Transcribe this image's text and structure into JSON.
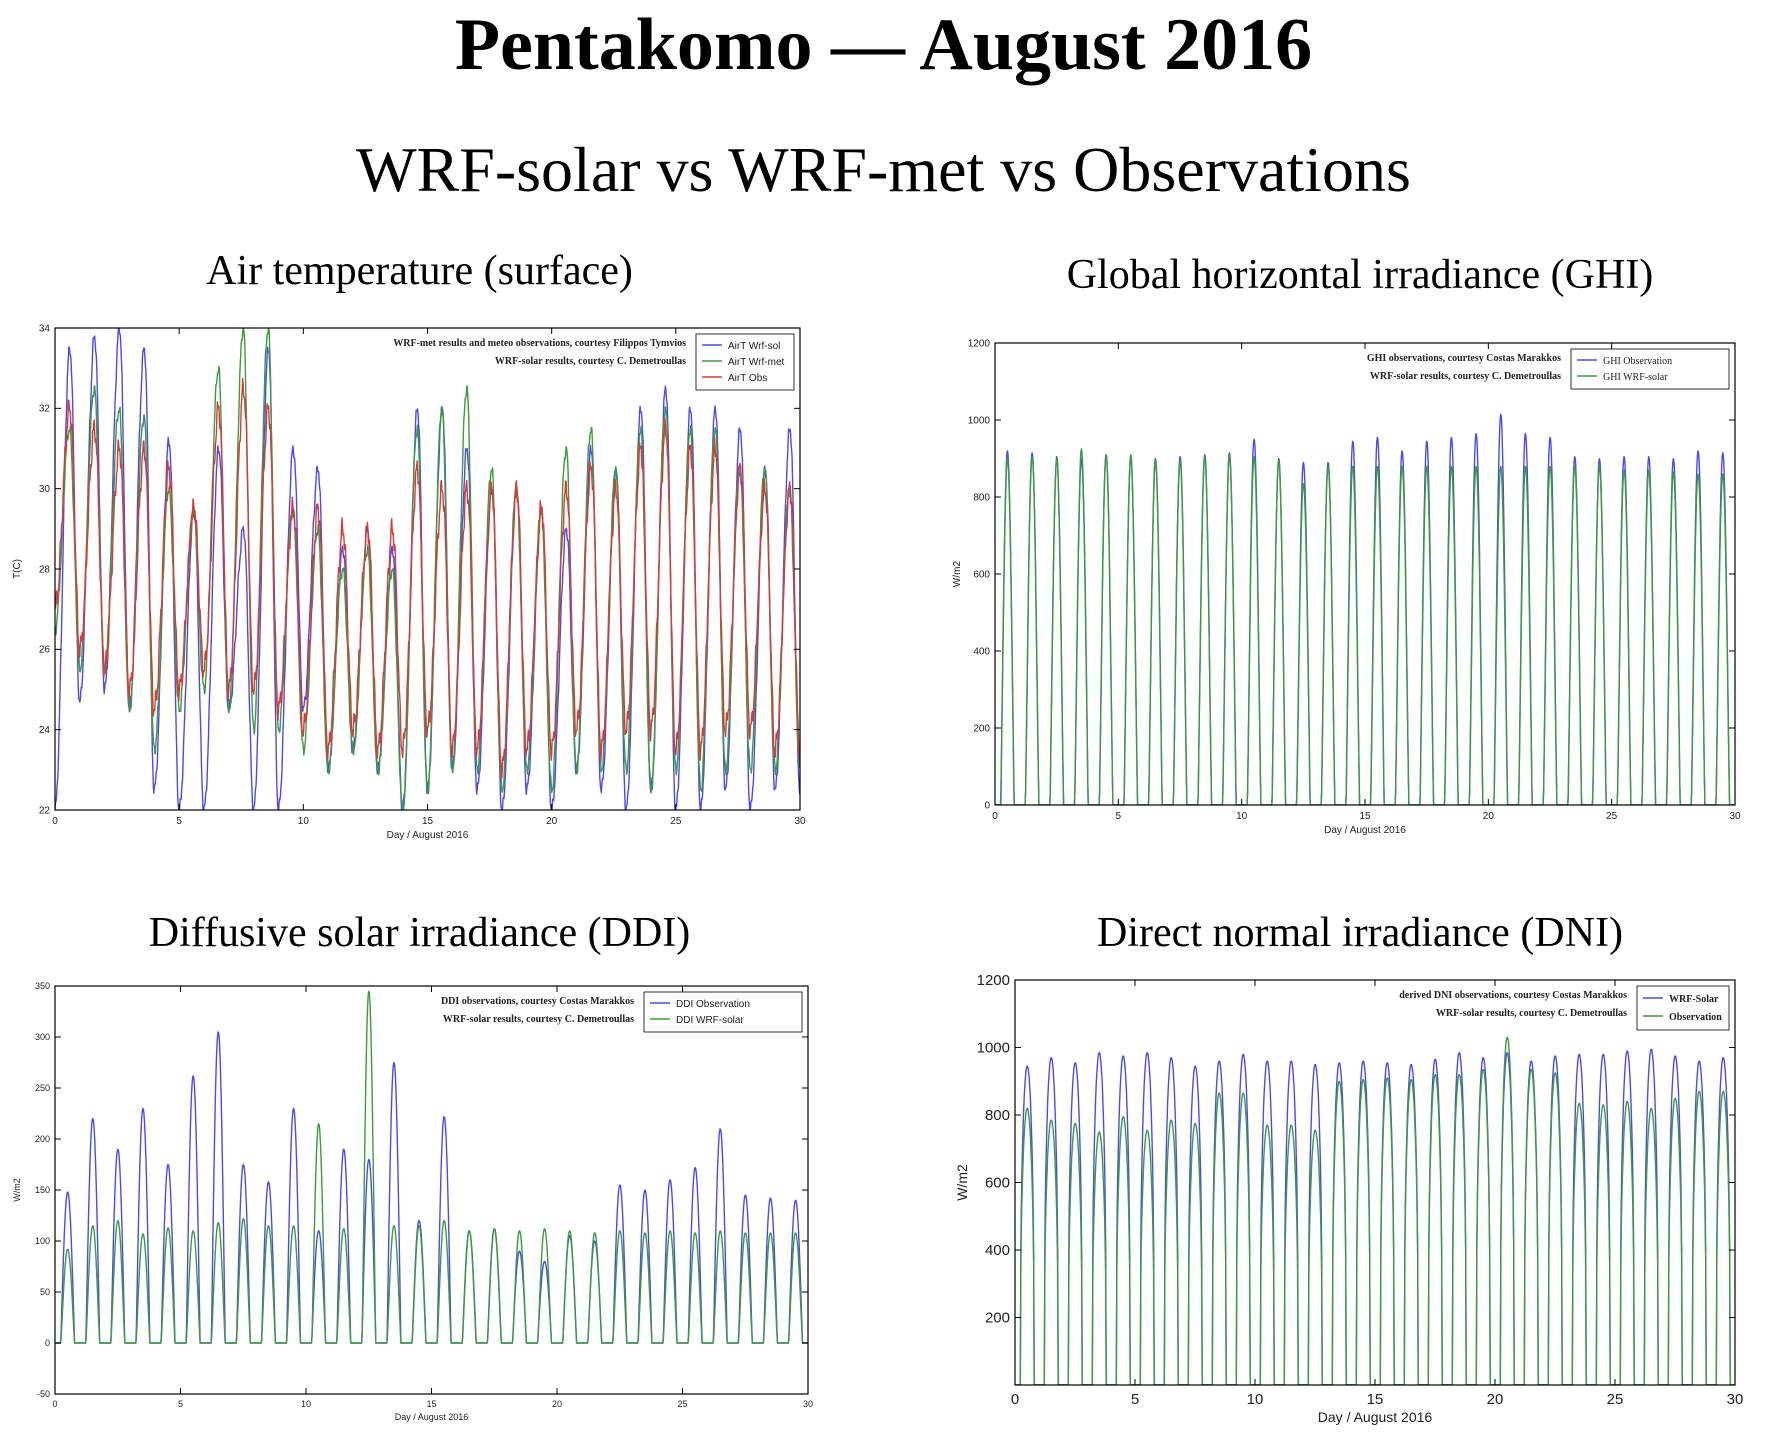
{
  "header": {
    "title": "Pentakomo — August 2016",
    "subtitle": "WRF-solar vs WRF-met vs Observations"
  },
  "colors": {
    "blue": "#4a4af0",
    "green": "#3d9a3d",
    "red": "#d83a3a"
  },
  "chart_data": [
    {
      "id": "air",
      "type": "line",
      "title": "Air temperature (surface)",
      "xlabel": "Day / August 2016",
      "ylabel": "T(C)",
      "xlim": [
        0,
        30
      ],
      "ylim": [
        22,
        34
      ],
      "xticks": [
        0,
        5,
        10,
        15,
        20,
        25,
        30
      ],
      "yticks": [
        22,
        24,
        26,
        28,
        30,
        32,
        34
      ],
      "annotations": [
        "WRF-met results and meteo observations, courtesy Filippos Tymvios",
        "WRF-solar results, courtesy C. Demetroullas"
      ],
      "legend_position": "top-right",
      "series": [
        {
          "name": "AirT Wrf-sol",
          "color": "#4a4af0",
          "daily_max": [
            33.5,
            33.8,
            34,
            33.5,
            31.2,
            29.5,
            31,
            29,
            33.5,
            31,
            30.5,
            28.5,
            29,
            28.5,
            32,
            32,
            31,
            30,
            30,
            29.5,
            29,
            31,
            30.5,
            32,
            32.5,
            32,
            32,
            31.5,
            30.5,
            31.5
          ],
          "daily_min": [
            22,
            24.7,
            25,
            24.5,
            22.5,
            22,
            22,
            24.5,
            22,
            22,
            24.5,
            23,
            23.5,
            23,
            22,
            22.5,
            23,
            22.5,
            22,
            22.5,
            22,
            23,
            22.5,
            22,
            22.5,
            22,
            22,
            22.5,
            22,
            22.5
          ]
        },
        {
          "name": "AirT Wrf-met",
          "color": "#3d9a3d",
          "daily_max": [
            31.5,
            32.5,
            32,
            31.8,
            30,
            29.5,
            33,
            34,
            34,
            29.5,
            29,
            28,
            28.5,
            28,
            31.5,
            32,
            32.5,
            30.5,
            30,
            29.5,
            31,
            31.5,
            30.5,
            31.5,
            32,
            31.5,
            31.5,
            30.5,
            30.5,
            30
          ],
          "daily_min": [
            26.5,
            25.5,
            25.5,
            24.5,
            23.5,
            24.5,
            25,
            24.5,
            24,
            24,
            23.5,
            23,
            23.5,
            23,
            22,
            22.5,
            23,
            23,
            22.5,
            23,
            22.5,
            23,
            23,
            23,
            22.5,
            23,
            22.5,
            23,
            23,
            23
          ]
        },
        {
          "name": "AirT Obs",
          "color": "#d83a3a",
          "daily_max": [
            32,
            31.5,
            31,
            31,
            30.5,
            29.5,
            32,
            32.5,
            32,
            29.5,
            29.5,
            29,
            29,
            29,
            30.5,
            30,
            30,
            30,
            30,
            29.5,
            30,
            30.5,
            30,
            31,
            31.5,
            31,
            31,
            30.5,
            30,
            30
          ],
          "daily_min": [
            27,
            26,
            25.5,
            25,
            24.5,
            25,
            25.5,
            25,
            25,
            24.5,
            24,
            23.5,
            24,
            23.5,
            23.5,
            24,
            23.5,
            23.5,
            23,
            23.5,
            23.5,
            24,
            23.5,
            24,
            24,
            23.5,
            23.5,
            24,
            24,
            23.5
          ]
        }
      ]
    },
    {
      "id": "ghi",
      "type": "line",
      "title": "Global horizontal irradiance (GHI)",
      "xlabel": "Day / August 2016",
      "ylabel": "W/m2",
      "xlim": [
        0,
        30
      ],
      "ylim": [
        0,
        1200
      ],
      "xticks": [
        0,
        5,
        10,
        15,
        20,
        25,
        30
      ],
      "yticks": [
        0,
        200,
        400,
        600,
        800,
        1000,
        1200
      ],
      "annotations": [
        "GHI observations, courtesy Costas Marakkos",
        "WRF-solar results, courtesy C. Demetroullas"
      ],
      "legend_position": "top-right",
      "series": [
        {
          "name": "GHI Observation",
          "color": "#4a4af0",
          "daily_peak": [
            920,
            915,
            905,
            900,
            910,
            905,
            900,
            905,
            910,
            915,
            950,
            900,
            890,
            890,
            945,
            955,
            920,
            945,
            955,
            965,
            1015,
            965,
            955,
            905,
            900,
            905,
            905,
            900,
            920,
            915
          ]
        },
        {
          "name": "GHI WRF-solar",
          "color": "#3d9a3d",
          "daily_peak": [
            900,
            905,
            900,
            925,
            910,
            910,
            895,
            895,
            905,
            910,
            905,
            895,
            835,
            880,
            880,
            880,
            880,
            880,
            880,
            880,
            880,
            880,
            880,
            880,
            880,
            870,
            870,
            865,
            860,
            860
          ]
        }
      ]
    },
    {
      "id": "ddi",
      "type": "line",
      "title": "Diffusive solar irradiance (DDI)",
      "xlabel": "Day / August 2016",
      "ylabel": "W/m2",
      "xlim": [
        0,
        30
      ],
      "ylim": [
        -50,
        350
      ],
      "xticks": [
        0,
        5,
        10,
        15,
        20,
        25,
        30
      ],
      "yticks": [
        -50,
        0,
        50,
        100,
        150,
        200,
        250,
        300,
        350
      ],
      "annotations": [
        "DDI observations, courtesy Costas Marakkos",
        "WRF-solar results, courtesy C. Demetroullas"
      ],
      "legend_position": "top-right",
      "series": [
        {
          "name": "DDI Observation",
          "color": "#4a4af0",
          "daily_peak": [
            148,
            220,
            190,
            230,
            175,
            262,
            305,
            175,
            158,
            230,
            110,
            190,
            180,
            275,
            120,
            222,
            110,
            112,
            90,
            80,
            105,
            100,
            155,
            150,
            160,
            172,
            210,
            145,
            142,
            140
          ]
        },
        {
          "name": "DDI WRF-solar",
          "color": "#3d9a3d",
          "daily_peak": [
            92,
            115,
            120,
            107,
            113,
            110,
            118,
            122,
            115,
            115,
            215,
            112,
            345,
            115,
            115,
            120,
            110,
            112,
            110,
            112,
            110,
            108,
            110,
            108,
            110,
            108,
            110,
            108,
            108,
            108
          ]
        }
      ]
    },
    {
      "id": "dni",
      "type": "line",
      "title": "Direct normal irradiance (DNI)",
      "xlabel": "Day / August 2016",
      "ylabel": "W/m2",
      "xlim": [
        0,
        30
      ],
      "ylim": [
        0,
        1200
      ],
      "xticks": [
        0,
        5,
        10,
        15,
        20,
        25,
        30
      ],
      "yticks": [
        200,
        400,
        600,
        800,
        1000,
        1200
      ],
      "annotations": [
        "derived DNI observations, courtesy Costas Marakkos",
        "WRF-solar results, courtesy C. Demetroullas"
      ],
      "legend_position": "top-right",
      "series": [
        {
          "name": "WRF-Solar",
          "color": "#4a4af0",
          "daily_peak": [
            945,
            970,
            955,
            985,
            975,
            985,
            970,
            945,
            960,
            980,
            960,
            960,
            950,
            955,
            960,
            955,
            950,
            965,
            985,
            970,
            985,
            960,
            975,
            980,
            980,
            990,
            995,
            975,
            960,
            970
          ]
        },
        {
          "name": "Observation",
          "color": "#3d9a3d",
          "daily_peak": [
            820,
            785,
            775,
            750,
            795,
            755,
            785,
            775,
            865,
            865,
            770,
            770,
            755,
            900,
            905,
            910,
            905,
            920,
            920,
            935,
            1030,
            935,
            925,
            835,
            830,
            840,
            820,
            850,
            870,
            870
          ]
        }
      ]
    }
  ]
}
